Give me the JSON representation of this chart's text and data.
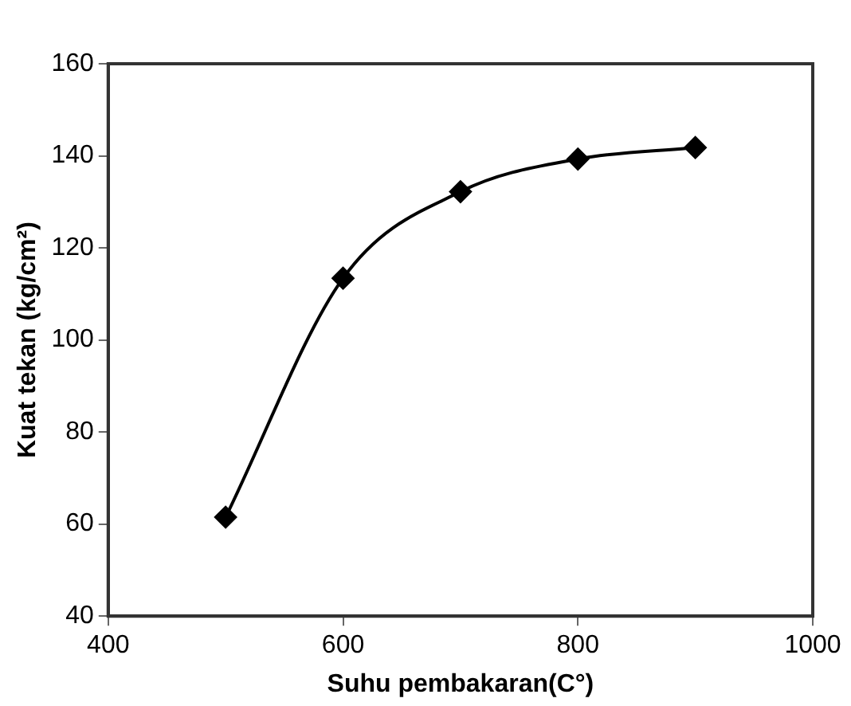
{
  "chart_data": {
    "type": "line",
    "xlabel": "Suhu pembakaran(C°)",
    "ylabel": "Kuat tekan (kg/cm²)",
    "x": [
      500,
      600,
      700,
      800,
      900
    ],
    "series": [
      {
        "color": "#000000",
        "values": [
          61.5,
          113.4,
          132.2,
          139.3,
          141.8
        ]
      }
    ],
    "xlim": [
      400,
      1000
    ],
    "xticks": [
      400,
      600,
      800,
      1000
    ],
    "ylim": [
      40,
      160
    ],
    "yticks": [
      40,
      60,
      80,
      100,
      120,
      140,
      160
    ],
    "grid": false,
    "legend": false,
    "marker": "diamond",
    "line_style": "solid"
  }
}
